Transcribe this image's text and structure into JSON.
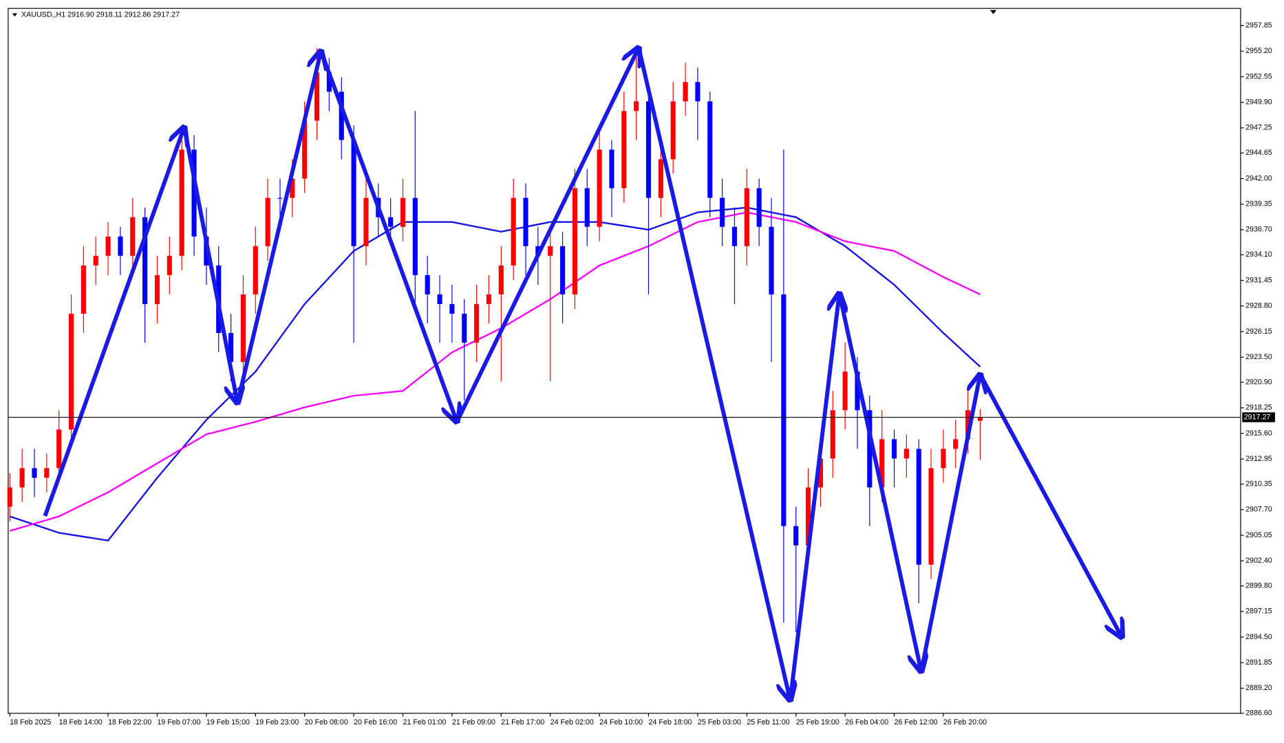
{
  "chart_data": {
    "type": "candlestick",
    "title": "XAUUSD,,H1  2916.90 2918.11 2912.86 2917.27",
    "bull_color": "#ff0000",
    "bear_color": "#0000ff",
    "categories": [
      "18 Feb 2025",
      null,
      null,
      null,
      "18 Feb 14:00",
      null,
      null,
      null,
      "18 Feb 22:00",
      null,
      null,
      null,
      "19 Feb 07:00",
      null,
      null,
      null,
      "19 Feb 15:00",
      null,
      null,
      null,
      "19 Feb 23:00",
      null,
      null,
      null,
      "20 Feb 08:00",
      null,
      null,
      null,
      "20 Feb 16:00",
      null,
      null,
      null,
      "21 Feb 01:00",
      null,
      null,
      null,
      "21 Feb 09:00",
      null,
      null,
      null,
      "21 Feb 17:00",
      null,
      null,
      null,
      "24 Feb 02:00",
      null,
      null,
      null,
      "24 Feb 10:00",
      null,
      null,
      null,
      "24 Feb 18:00",
      null,
      null,
      null,
      "25 Feb 03:00",
      null,
      null,
      null,
      "25 Feb 11:00",
      null,
      null,
      null,
      "25 Feb 19:00",
      null,
      null,
      null,
      "26 Feb 04:00",
      null,
      null,
      null,
      "26 Feb 12:00",
      null,
      null,
      null,
      "26 Feb 20:00",
      null,
      null,
      null
    ],
    "ohlc": [
      [
        2908,
        2911.5,
        2906.5,
        2910
      ],
      [
        2910,
        2914,
        2908.5,
        2912
      ],
      [
        2912,
        2914,
        2909,
        2911
      ],
      [
        2911,
        2913.5,
        2909.5,
        2912
      ],
      [
        2912,
        2918,
        2910.5,
        2916
      ],
      [
        2916,
        2930,
        2914.5,
        2928
      ],
      [
        2928,
        2935,
        2926,
        2933
      ],
      [
        2933,
        2936,
        2931,
        2934
      ],
      [
        2934,
        2937.5,
        2932,
        2936
      ],
      [
        2936,
        2937,
        2932,
        2934
      ],
      [
        2934,
        2940,
        2932.5,
        2938
      ],
      [
        2938,
        2939,
        2925,
        2929
      ],
      [
        2929,
        2934,
        2927,
        2932
      ],
      [
        2932,
        2936,
        2930,
        2934
      ],
      [
        2934,
        2947,
        2932.5,
        2945
      ],
      [
        2945,
        2946.5,
        2934,
        2936
      ],
      [
        2936,
        2939,
        2931,
        2933
      ],
      [
        2933,
        2935,
        2924,
        2926
      ],
      [
        2926,
        2928,
        2921,
        2923
      ],
      [
        2923,
        2932,
        2921.5,
        2930
      ],
      [
        2930,
        2937,
        2928,
        2935
      ],
      [
        2935,
        2942,
        2933.5,
        2940
      ],
      [
        2940,
        2942,
        2937.5,
        2940
      ],
      [
        2940,
        2944,
        2938,
        2942
      ],
      [
        2942,
        2950,
        2940.5,
        2948
      ],
      [
        2948,
        2955.5,
        2946,
        2953
      ],
      [
        2953,
        2954.5,
        2949,
        2951
      ],
      [
        2951,
        2952.5,
        2944,
        2946
      ],
      [
        2946,
        2947.5,
        2925,
        2935
      ],
      [
        2935,
        2942,
        2933,
        2940
      ],
      [
        2940,
        2941.5,
        2936,
        2938
      ],
      [
        2938,
        2940,
        2935,
        2937
      ],
      [
        2937,
        2942,
        2935.5,
        2940
      ],
      [
        2940,
        2949,
        2929,
        2932
      ],
      [
        2932,
        2934,
        2927,
        2930
      ],
      [
        2930,
        2932,
        2925,
        2929
      ],
      [
        2929,
        2931,
        2925,
        2928
      ],
      [
        2928,
        2929.5,
        2919,
        2925
      ],
      [
        2925,
        2931,
        2923,
        2929
      ],
      [
        2929,
        2932,
        2927,
        2930
      ],
      [
        2930,
        2935,
        2921,
        2933
      ],
      [
        2933,
        2942,
        2931.5,
        2940
      ],
      [
        2940,
        2941.5,
        2932,
        2935
      ],
      [
        2935,
        2937,
        2931,
        2934
      ],
      [
        2934,
        2937,
        2921,
        2935
      ],
      [
        2935,
        2936.5,
        2927,
        2930
      ],
      [
        2930,
        2943,
        2928.5,
        2941
      ],
      [
        2941,
        2943,
        2935,
        2937
      ],
      [
        2937,
        2947,
        2935.5,
        2945
      ],
      [
        2945,
        2946,
        2938,
        2941
      ],
      [
        2941,
        2951,
        2939.5,
        2949
      ],
      [
        2949,
        2955,
        2946,
        2950
      ],
      [
        2950,
        2951.5,
        2930,
        2940
      ],
      [
        2940,
        2946,
        2938,
        2944
      ],
      [
        2944,
        2952,
        2942.5,
        2950
      ],
      [
        2950,
        2954,
        2948.5,
        2952
      ],
      [
        2952,
        2953.5,
        2946,
        2950
      ],
      [
        2950,
        2951,
        2938,
        2940
      ],
      [
        2940,
        2942,
        2935,
        2937
      ],
      [
        2937,
        2939,
        2929,
        2935
      ],
      [
        2935,
        2943,
        2933,
        2941
      ],
      [
        2941,
        2942,
        2935,
        2937
      ],
      [
        2937,
        2940,
        2923,
        2930
      ],
      [
        2930,
        2945,
        2896,
        2906
      ],
      [
        2906,
        2908,
        2895,
        2904
      ],
      [
        2904,
        2912,
        2902,
        2910
      ],
      [
        2910,
        2915,
        2908,
        2913
      ],
      [
        2913,
        2920,
        2911,
        2918
      ],
      [
        2918,
        2925,
        2916,
        2922
      ],
      [
        2922,
        2923.5,
        2914,
        2918
      ],
      [
        2918,
        2919.5,
        2906,
        2910
      ],
      [
        2910,
        2918,
        2908.5,
        2915
      ],
      [
        2915,
        2916,
        2910,
        2913
      ],
      [
        2913,
        2915.5,
        2911,
        2914
      ],
      [
        2914,
        2915,
        2898,
        2902
      ],
      [
        2902,
        2914,
        2900.5,
        2912
      ],
      [
        2912,
        2916,
        2910.5,
        2914
      ],
      [
        2914,
        2917,
        2912,
        2915
      ],
      [
        2915,
        2920,
        2913.5,
        2918
      ],
      [
        2916.9,
        2918.11,
        2912.86,
        2917.27
      ]
    ],
    "lines": [
      {
        "color": "#1414e6",
        "x": [
          0,
          4,
          8,
          12,
          16,
          20,
          24,
          28,
          32,
          36,
          40,
          44,
          48,
          52,
          56,
          60,
          64,
          68,
          72,
          76,
          79
        ],
        "values": [
          2907,
          2905.3,
          2904.5,
          2911,
          2917,
          2922,
          2929,
          2934.5,
          2937.5,
          2937.5,
          2936.5,
          2937.5,
          2937.5,
          2936.7,
          2938.5,
          2939,
          2938,
          2935,
          2931,
          2926,
          2922.5
        ]
      },
      {
        "color": "#ff00ff",
        "x": [
          0,
          4,
          8,
          12,
          16,
          20,
          24,
          28,
          32,
          36,
          40,
          44,
          48,
          52,
          56,
          60,
          64,
          68,
          72,
          76,
          79
        ],
        "values": [
          2905.5,
          2907,
          2909.5,
          2912.5,
          2915.5,
          2916.8,
          2918.3,
          2919.5,
          2920,
          2924,
          2926.5,
          2929.5,
          2933,
          2935,
          2937.5,
          2938.5,
          2937.5,
          2935.5,
          2934.5,
          2931.8,
          2930
        ]
      }
    ],
    "price_line": 2917.27,
    "ylim": [
      2886.6,
      2959.63
    ],
    "yticks": [
      2957.85,
      {
        "value": 2955.2,
        "label": "2955.20"
      },
      {
        "value": 2952.55,
        "label": "2952.55"
      },
      {
        "value": 2949.9,
        "label": "2949.90"
      },
      {
        "value": 2947.25,
        "label": "2947.25"
      },
      2944.65,
      {
        "value": 2942,
        "label": "2942.00"
      },
      {
        "value": 2939.35,
        "label": "2939.35"
      },
      {
        "value": 2936.7,
        "label": "2936.70"
      },
      {
        "value": 2934.1,
        "label": "2934.10"
      },
      {
        "value": 2931.45,
        "label": "2931.45"
      },
      {
        "value": 2928.8,
        "label": "2928.80"
      },
      {
        "value": 2926.15,
        "label": "2926.15"
      },
      {
        "value": 2923.5,
        "label": "2923.50"
      },
      {
        "value": 2920.9,
        "label": "2920.90"
      },
      {
        "value": 2918.25,
        "label": "2918.25"
      },
      {
        "value": 2915.6,
        "label": "2915.60"
      },
      2912.95,
      2910.35,
      {
        "value": 2907.7,
        "label": "2907.70"
      },
      {
        "value": 2905.05,
        "label": "2905.05"
      },
      {
        "value": 2902.4,
        "label": "2902.40"
      },
      {
        "value": 2899.8,
        "label": "2899.80"
      },
      2897.15,
      {
        "value": 2894.5,
        "label": "2894.50"
      },
      2891.85,
      {
        "value": 2889.2,
        "label": "2889.20"
      },
      {
        "value": 2886.6,
        "label": "2886.60"
      }
    ]
  }
}
